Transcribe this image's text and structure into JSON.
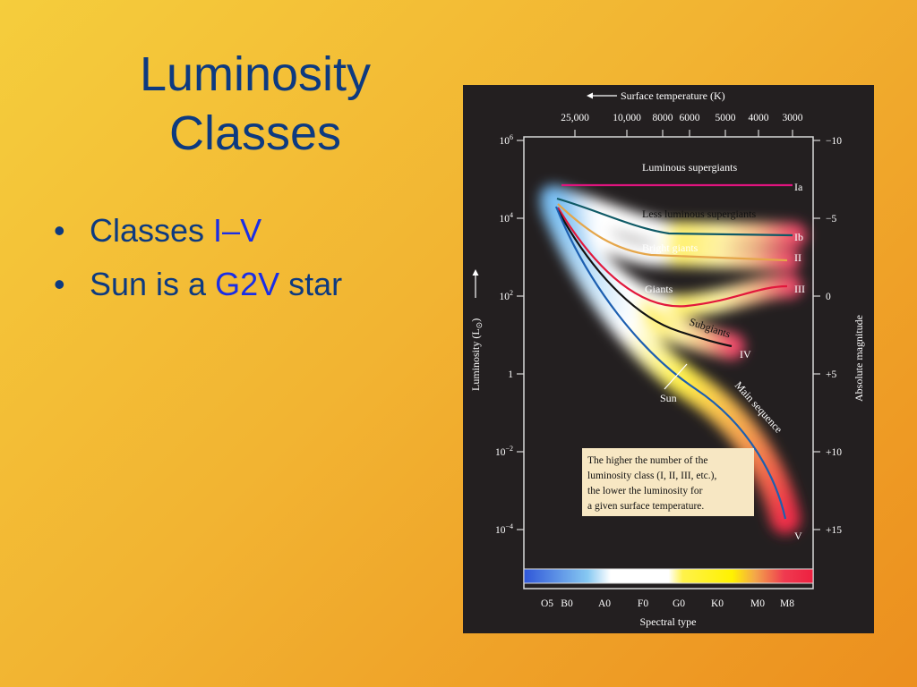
{
  "slide": {
    "title_line1": "Luminosity",
    "title_line2": "Classes",
    "bullets": [
      {
        "prefix": "Classes ",
        "highlight": "I–V",
        "suffix": ""
      },
      {
        "prefix": "Sun is a ",
        "highlight": "G2V",
        "suffix": " star"
      }
    ],
    "colors": {
      "title": "#0d3a80",
      "highlight": "#1a2ee6",
      "background_top": "#f5cd3c",
      "background_bottom": "#ec8f1e",
      "figure_background": "#231f20"
    }
  },
  "diagram": {
    "top_axis_title": "Surface temperature (K)",
    "top_ticks": [
      "25,000",
      "10,000",
      "8000",
      "6000",
      "5000",
      "4000",
      "3000"
    ],
    "left_axis_title": "Luminosity (L",
    "left_axis_subscript": "⊙",
    "left_axis_close": ")",
    "left_ticks": [
      {
        "base": "10",
        "exp": "6"
      },
      {
        "base": "10",
        "exp": "4"
      },
      {
        "base": "10",
        "exp": "2"
      },
      {
        "base": "1",
        "exp": ""
      },
      {
        "base": "10",
        "exp": "−2"
      },
      {
        "base": "10",
        "exp": "−4"
      }
    ],
    "right_axis_title": "Absolute magnitude",
    "right_ticks": [
      "−10",
      "−5",
      "0",
      "+5",
      "+10",
      "+15"
    ],
    "bottom_ticks": [
      "O5",
      "B0",
      "A0",
      "F0",
      "G0",
      "K0",
      "M0",
      "M8"
    ],
    "bottom_axis_title": "Spectral type",
    "band_labels": {
      "luminous_supergiants": "Luminous supergiants",
      "less_luminous_supergiants": "Less luminous supergiants",
      "bright_giants": "Bright giants",
      "giants": "Giants",
      "subgiants": "Subgiants",
      "main_sequence": "Main sequence",
      "sun": "Sun"
    },
    "class_labels": {
      "Ia": "Ia",
      "Ib": "Ib",
      "II": "II",
      "III": "III",
      "IV": "IV",
      "V": "V"
    },
    "note_lines": [
      "The higher the number of the",
      "luminosity class (I, II, III, etc.),",
      "the lower the luminosity for",
      "a given surface temperature."
    ],
    "colors": {
      "class_Ia": "#e0147e",
      "class_Ib": "#0f5a66",
      "class_II": "#e5a64a",
      "class_III": "#e2183c",
      "class_IV": "#111111",
      "class_V": "#1d5fb0",
      "note_bg": "#f7e7c3"
    }
  }
}
